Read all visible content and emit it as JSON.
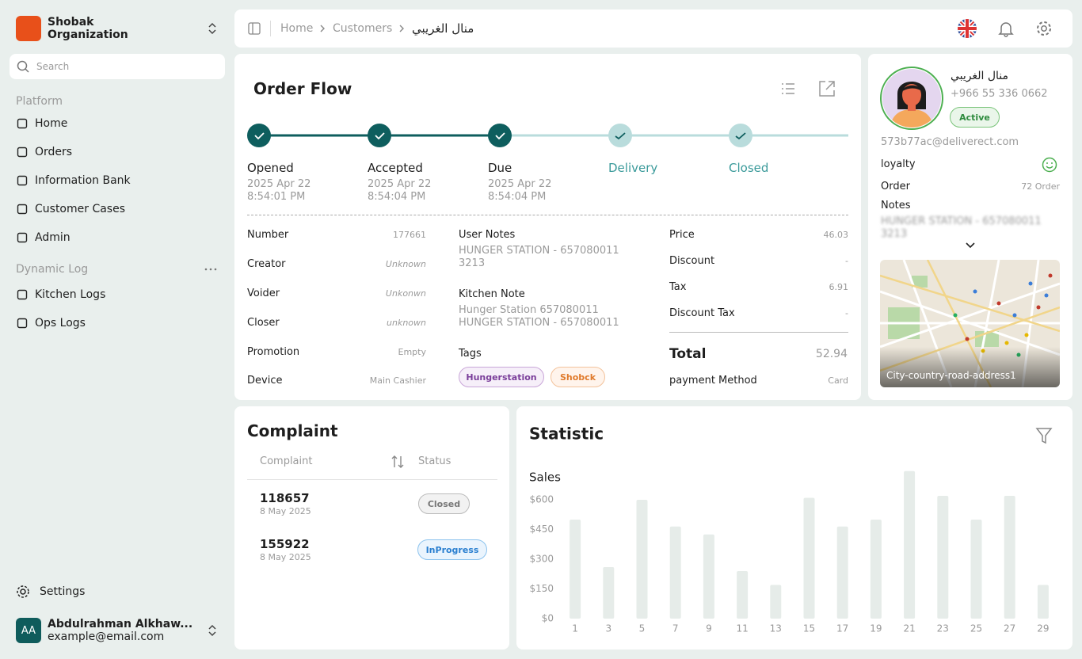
{
  "sidebar": {
    "org": "Shobak Organization",
    "search": "Search",
    "sections": [
      {
        "title": "Platform",
        "items": [
          "Home",
          "Orders",
          "Information Bank",
          "Customer Cases",
          "Admin"
        ]
      },
      {
        "title": "Dynamic Log",
        "items": [
          "Kitchen Logs",
          "Ops Logs"
        ]
      }
    ],
    "settings": "Settings",
    "user": {
      "initials": "AA",
      "name": "Abdulrahman Alkhaw...",
      "email": "example@email.com"
    }
  },
  "breadcrumb": [
    "Home",
    "Customers",
    "منال الغريبي"
  ],
  "order_flow": {
    "title": "Order Flow",
    "steps": [
      {
        "label": "Opened",
        "date": "2025 Apr 22",
        "time": "8:54:01 PM"
      },
      {
        "label": "Accepted",
        "date": "2025 Apr 22",
        "time": "8:54:04 PM"
      },
      {
        "label": "Due",
        "date": "2025 Apr 22",
        "time": "8:54:04 PM"
      },
      {
        "label": "Delivery"
      },
      {
        "label": "Closed"
      }
    ],
    "details": [
      [
        "Number",
        "177661"
      ],
      [
        "Creator",
        "Unknown"
      ],
      [
        "Voider",
        "Unkonwn"
      ],
      [
        "Closer",
        "unknown"
      ],
      [
        "Promotion",
        "Empty"
      ],
      [
        "Device",
        "Main Cashier"
      ]
    ],
    "user_notes": {
      "label": "User Notes",
      "lines": [
        "HUNGER STATION - 657080011",
        "3213"
      ]
    },
    "kitchen_note": {
      "label": "Kitchen Note",
      "lines": [
        "Hunger Station 657080011",
        "HUNGER STATION - 657080011"
      ]
    },
    "tags": {
      "label": "Tags",
      "items": [
        "Hungerstation",
        "Shobck"
      ]
    },
    "prices": [
      [
        "Price",
        "46.03"
      ],
      [
        "Discount",
        "-"
      ],
      [
        "Tax",
        "6.91"
      ],
      [
        "Discount Tax",
        "-"
      ]
    ],
    "total": [
      "Total",
      "52.94"
    ],
    "payment": [
      "payment Method",
      "Card"
    ]
  },
  "profile": {
    "name": "منال الغريبي",
    "phone": "+966 55 336 0662",
    "status": "Active",
    "email": "573b77ac@deliverect.com",
    "loyalty": "loyalty",
    "order_label": "Order",
    "order_value": "72 Order",
    "notes_label": "Notes",
    "notes": [
      "HUNGER STATION - 657080011",
      "3213"
    ],
    "address": "City-country-road-address1"
  },
  "complaint": {
    "title": "Complaint",
    "columns": [
      "Complaint",
      "Status"
    ],
    "rows": [
      {
        "id": "118657",
        "date": "8 May 2025",
        "status": "Closed"
      },
      {
        "id": "155922",
        "date": "8 May 2025",
        "status": "InProgress"
      }
    ]
  },
  "chart_data": {
    "type": "bar",
    "title": "Statistic",
    "subtitle": "Sales",
    "categories": [
      "1",
      "3",
      "5",
      "7",
      "9",
      "11",
      "13",
      "15",
      "17",
      "19",
      "21",
      "23",
      "25",
      "27",
      "29"
    ],
    "values": [
      500,
      260,
      600,
      465,
      425,
      240,
      170,
      610,
      465,
      500,
      745,
      620,
      500,
      620,
      170
    ],
    "color": "#e6ece9",
    "ylim": [
      0,
      750
    ],
    "yticks": [
      {
        "value": 0,
        "label": "$0"
      },
      {
        "value": 150,
        "label": "$150"
      },
      {
        "value": 300,
        "label": "$300"
      },
      {
        "value": 450,
        "label": "$450"
      },
      {
        "value": 600,
        "label": "$600"
      }
    ],
    "grid": false
  }
}
